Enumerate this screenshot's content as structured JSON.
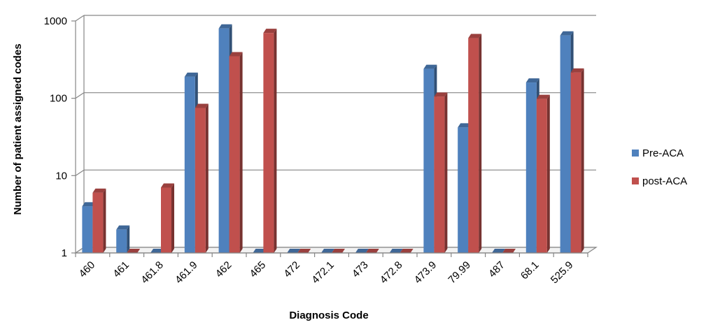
{
  "chart_data": {
    "type": "bar",
    "title": "",
    "xlabel": "Diagnosis Code",
    "ylabel": "Number of patient assigned codes",
    "y_scale": "log",
    "ylim": [
      1,
      1000
    ],
    "y_ticks": [
      "1",
      "10",
      "100",
      "1000"
    ],
    "grid": true,
    "legend_position": "right",
    "categories": [
      "460",
      "461",
      "461.8",
      "461.9",
      "462",
      "465",
      "472",
      "472.1",
      "473",
      "472.8",
      "473.9",
      "79.99",
      "487",
      "68.1",
      "525.9"
    ],
    "series": [
      {
        "name": "Pre-ACA",
        "color": "#4F81BD",
        "values": [
          4,
          2,
          1,
          190,
          800,
          1,
          1,
          1,
          1,
          1,
          240,
          42,
          1,
          160,
          650
        ]
      },
      {
        "name": "post-ACA",
        "color": "#C0504D",
        "values": [
          6,
          1,
          7,
          75,
          350,
          700,
          1,
          1,
          1,
          1,
          105,
          600,
          1,
          98,
          215
        ]
      }
    ]
  }
}
